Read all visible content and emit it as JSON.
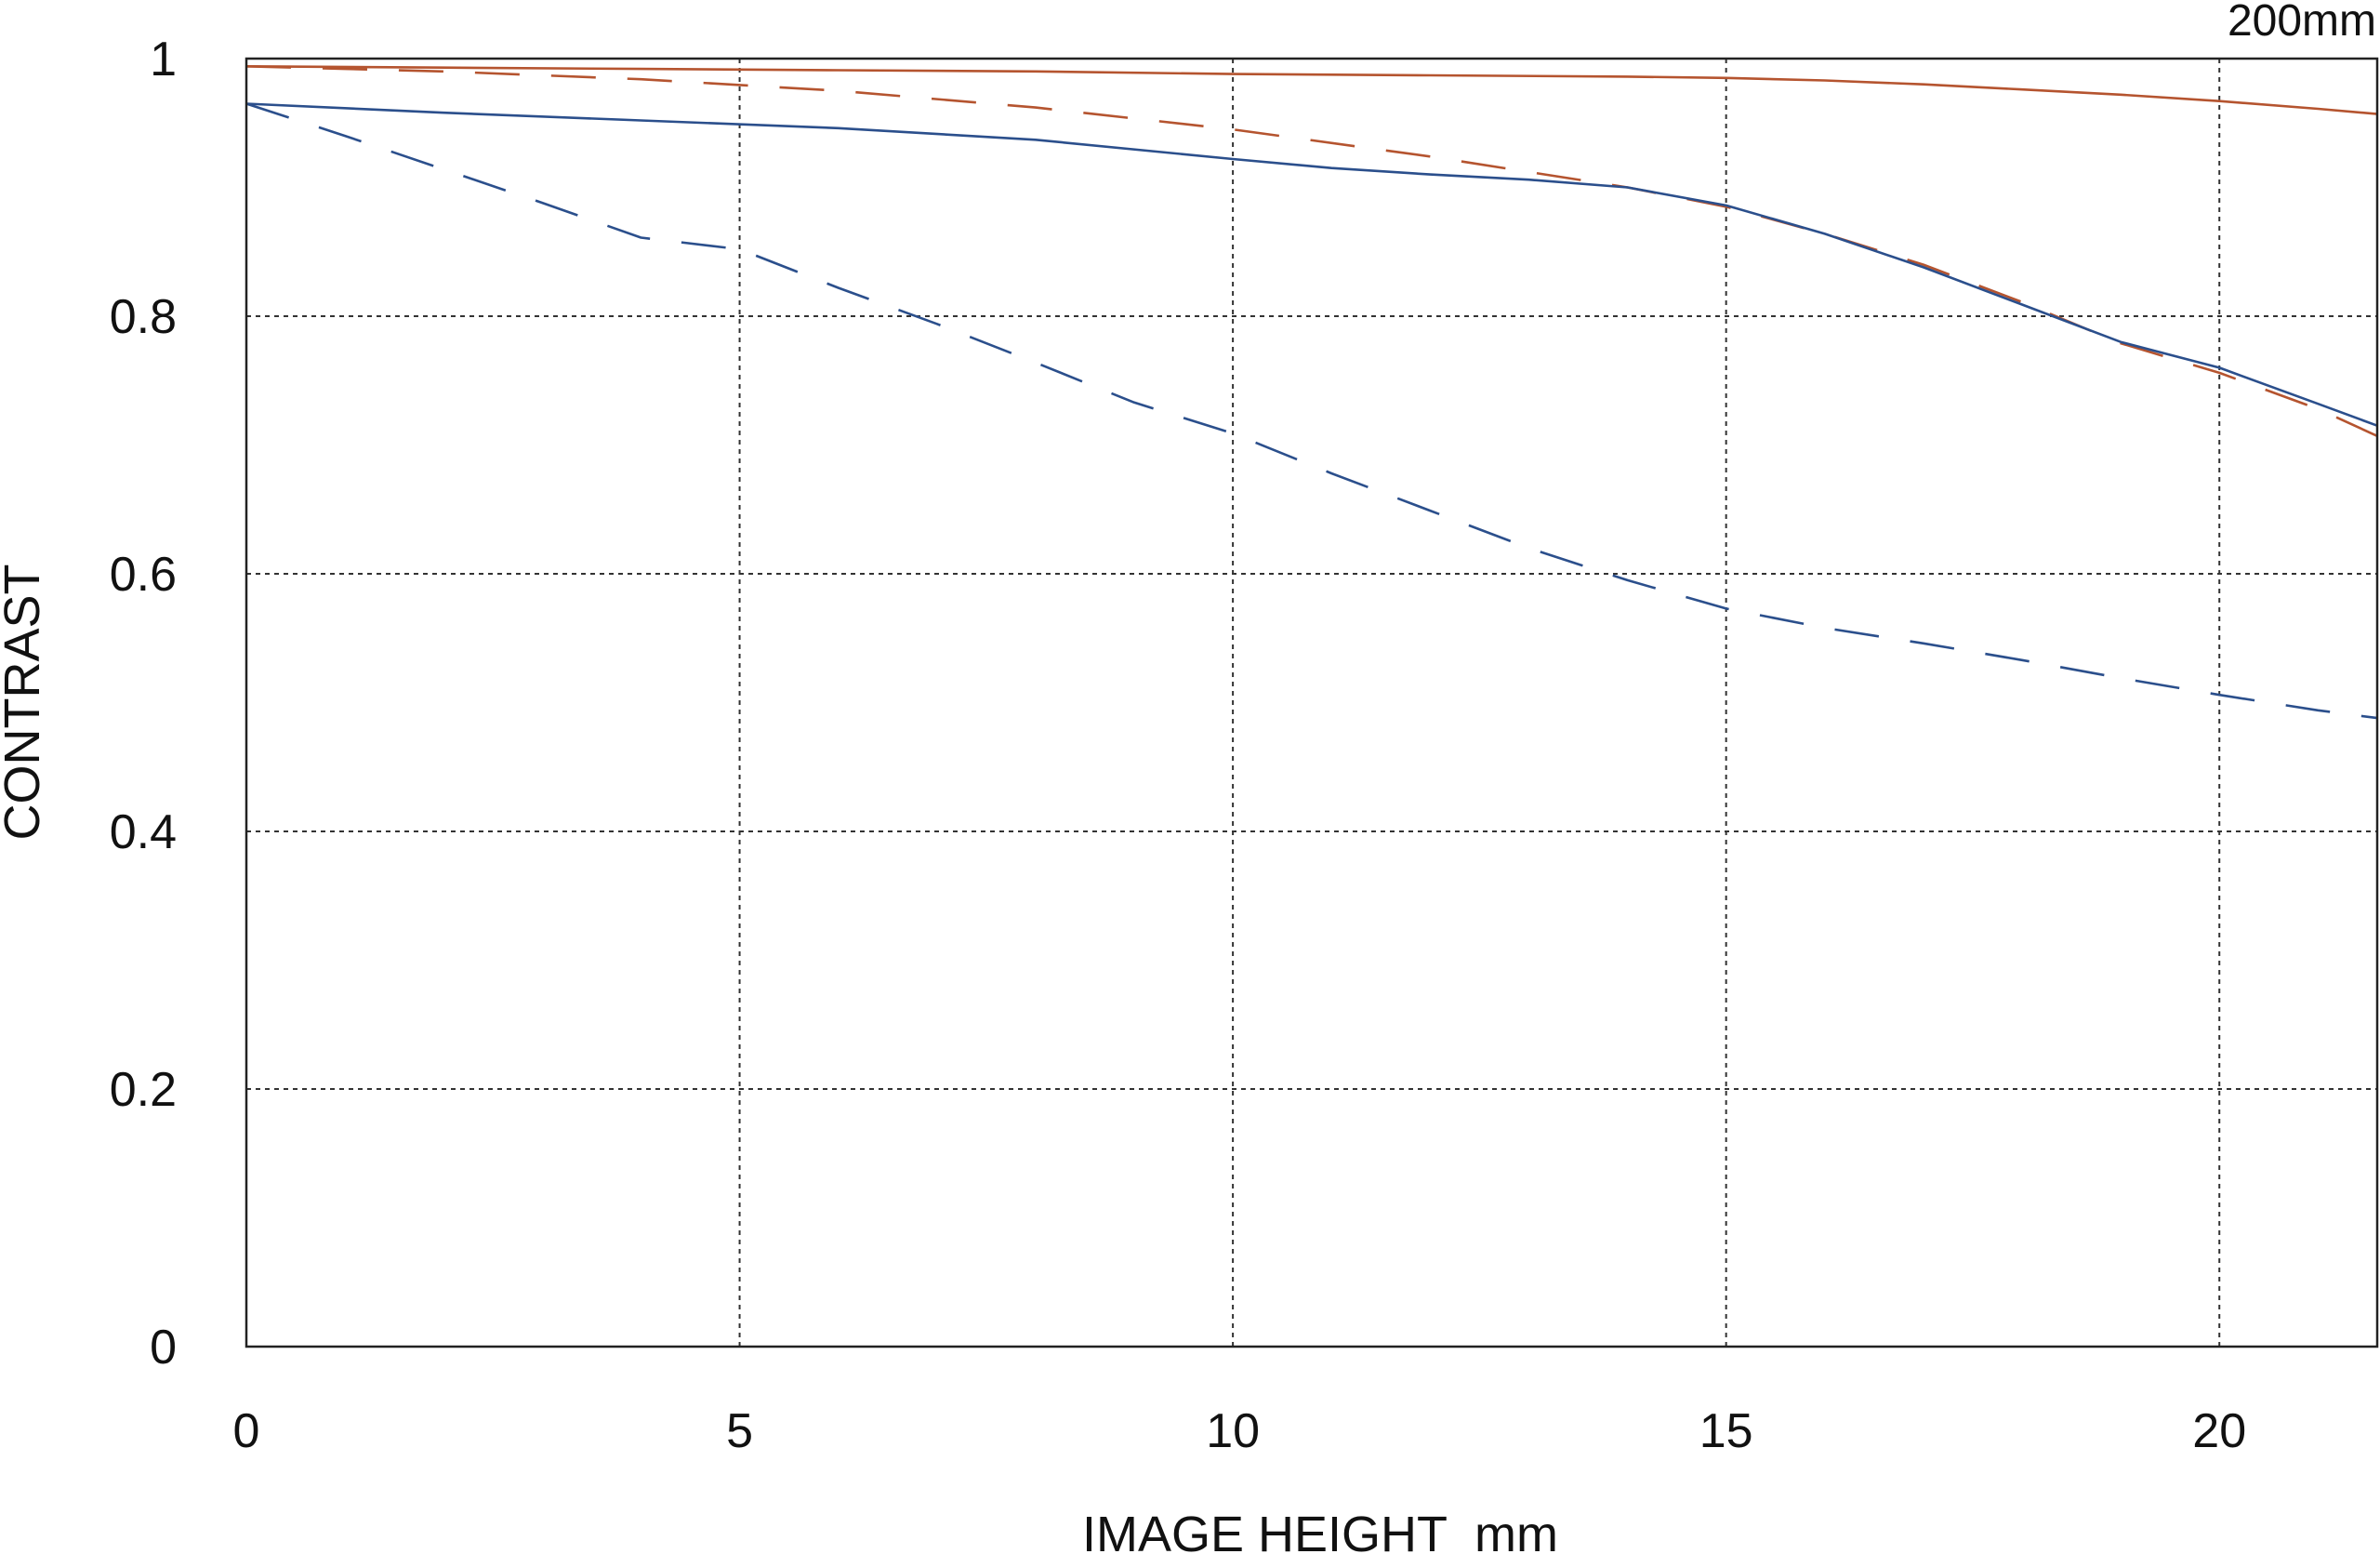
{
  "chart_data": {
    "type": "line",
    "title": "200mm",
    "xlabel": "IMAGE HEIGHT  mm",
    "ylabel": "CONTRAST",
    "xlim": [
      0,
      21.6
    ],
    "ylim": [
      0,
      1
    ],
    "xticks": [
      0,
      5,
      10,
      15,
      20
    ],
    "xtick_labels": [
      "0",
      "5",
      "10",
      "15",
      "20"
    ],
    "yticks": [
      0,
      0.2,
      0.4,
      0.6,
      0.8,
      1
    ],
    "ytick_labels": [
      "0",
      "0.2",
      "0.4",
      "0.6",
      "0.8",
      "1"
    ],
    "grid": true,
    "legend": "none",
    "series": [
      {
        "color": "#b5542f",
        "style": "solid",
        "points": [
          [
            0,
            0.994
          ],
          [
            2,
            0.993
          ],
          [
            4,
            0.992
          ],
          [
            6,
            0.991
          ],
          [
            8,
            0.99
          ],
          [
            10,
            0.988
          ],
          [
            12,
            0.987
          ],
          [
            14,
            0.986
          ],
          [
            15,
            0.985
          ],
          [
            16,
            0.983
          ],
          [
            17,
            0.98
          ],
          [
            18,
            0.976
          ],
          [
            19,
            0.972
          ],
          [
            20,
            0.967
          ],
          [
            21,
            0.961
          ],
          [
            21.6,
            0.957
          ]
        ]
      },
      {
        "color": "#b5542f",
        "style": "dashed",
        "points": [
          [
            0,
            0.994
          ],
          [
            1,
            0.992
          ],
          [
            2,
            0.99
          ],
          [
            4,
            0.984
          ],
          [
            6,
            0.975
          ],
          [
            8,
            0.962
          ],
          [
            10,
            0.945
          ],
          [
            12,
            0.924
          ],
          [
            13,
            0.912
          ],
          [
            14,
            0.9
          ],
          [
            15,
            0.885
          ],
          [
            16,
            0.864
          ],
          [
            17,
            0.84
          ],
          [
            18,
            0.811
          ],
          [
            19,
            0.779
          ],
          [
            20,
            0.756
          ],
          [
            21,
            0.728
          ],
          [
            21.6,
            0.707
          ]
        ]
      },
      {
        "color": "#2b4f8c",
        "style": "solid",
        "points": [
          [
            0,
            0.965
          ],
          [
            2,
            0.958
          ],
          [
            4,
            0.952
          ],
          [
            6,
            0.946
          ],
          [
            8,
            0.937
          ],
          [
            10,
            0.922
          ],
          [
            11,
            0.915
          ],
          [
            12,
            0.91
          ],
          [
            13,
            0.906
          ],
          [
            14,
            0.9
          ],
          [
            15,
            0.886
          ],
          [
            16,
            0.864
          ],
          [
            17,
            0.838
          ],
          [
            18,
            0.809
          ],
          [
            19,
            0.78
          ],
          [
            20,
            0.76
          ],
          [
            21,
            0.732
          ],
          [
            21.6,
            0.715
          ]
        ]
      },
      {
        "color": "#2b4f8c",
        "style": "dashed",
        "points": [
          [
            0,
            0.965
          ],
          [
            1,
            0.94
          ],
          [
            2,
            0.914
          ],
          [
            3,
            0.888
          ],
          [
            4,
            0.861
          ],
          [
            5,
            0.852
          ],
          [
            6,
            0.822
          ],
          [
            7,
            0.794
          ],
          [
            8,
            0.764
          ],
          [
            9,
            0.733
          ],
          [
            10,
            0.709
          ],
          [
            11,
            0.678
          ],
          [
            12,
            0.649
          ],
          [
            13,
            0.62
          ],
          [
            14,
            0.595
          ],
          [
            15,
            0.573
          ],
          [
            16,
            0.558
          ],
          [
            17,
            0.546
          ],
          [
            18,
            0.533
          ],
          [
            19,
            0.519
          ],
          [
            20,
            0.506
          ],
          [
            21,
            0.494
          ],
          [
            21.6,
            0.488
          ]
        ]
      }
    ]
  }
}
